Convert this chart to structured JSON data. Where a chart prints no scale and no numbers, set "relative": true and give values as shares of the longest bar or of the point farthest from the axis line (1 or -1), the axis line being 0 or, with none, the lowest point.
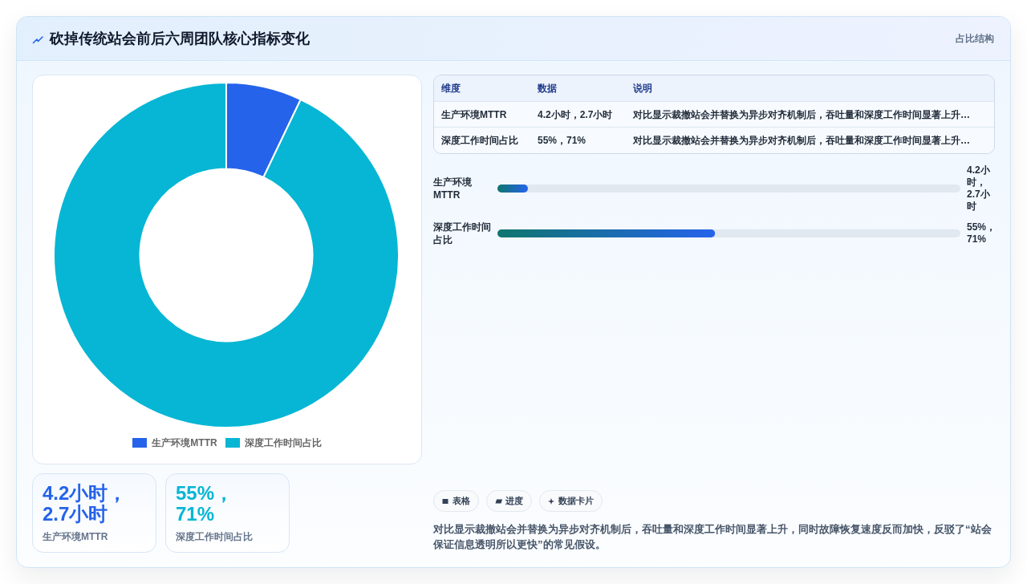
{
  "chart_data": [
    {
      "type": "other",
      "title": "砍掉传统站会前后六周团队核心指标变化",
      "subtitle": "占比结构"
    },
    {
      "type": "donut",
      "categories": [
        "生产环境MTTR",
        "深度工作时间占比"
      ],
      "values": [
        7.1,
        92.9
      ],
      "colors": [
        "#2563eb",
        "#06b6d4"
      ],
      "legend": "bottom"
    },
    {
      "type": "other",
      "annotations": [
        "维度",
        "数据",
        "说明",
        "生产环境MTTR",
        "4.2小时，2.7小时",
        "对比显示裁撤站会并替换为异步对齐机制后，吞吐量和深度工作时间显著上升…",
        "深度工作时间占比",
        "55%，71%",
        "对比显示裁撤站会并替换为异步对齐机制后，吞吐量和深度工作时间显著上升…"
      ]
    },
    {
      "type": "bar",
      "orientation": "horizontal",
      "relative": true,
      "categories": [
        "生产环境MTTR",
        "深度工作时间占比"
      ],
      "values": [
        0.14,
        1
      ],
      "annotations": [
        "4.2小时，2.7小时",
        "55%，71%"
      ]
    },
    {
      "type": "other",
      "annotations": [
        "4.2小时，2.7小时",
        "生产环境MTTR",
        "55%，71%",
        "深度工作时间占比"
      ]
    },
    {
      "type": "other",
      "annotations": [
        "表格",
        "进度",
        "数据卡片",
        "对比显示裁撤站会并替换为异步对齐机制后，吞吐量和深度工作时间显著上升，同时故障恢复速度反而加快，反驳了“站会保证信息透明所以更快”的常见假设。"
      ]
    }
  ]
}
